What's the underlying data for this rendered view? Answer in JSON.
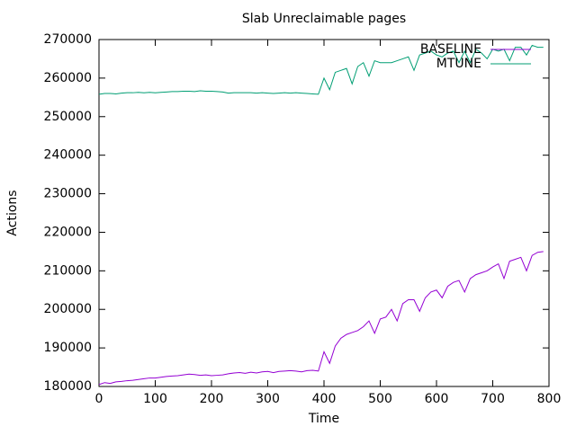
{
  "chart_data": {
    "type": "line",
    "title": "Slab Unreclaimable pages",
    "xlabel": "Time",
    "ylabel": "Actions",
    "x": [
      0,
      10,
      20,
      30,
      40,
      50,
      60,
      70,
      80,
      90,
      100,
      110,
      120,
      130,
      140,
      150,
      160,
      170,
      180,
      190,
      200,
      210,
      220,
      230,
      240,
      250,
      260,
      270,
      280,
      290,
      300,
      310,
      320,
      330,
      340,
      350,
      360,
      370,
      380,
      390,
      400,
      410,
      420,
      430,
      440,
      450,
      460,
      470,
      480,
      490,
      500,
      510,
      520,
      530,
      540,
      550,
      560,
      570,
      580,
      590,
      600,
      610,
      620,
      630,
      640,
      650,
      660,
      670,
      680,
      690,
      700,
      710,
      720,
      730,
      740,
      750,
      760,
      770,
      780,
      790
    ],
    "series": [
      {
        "name": "BASELINE",
        "color": "#9400d3",
        "values": [
          180500,
          181000,
          180800,
          181200,
          181300,
          181500,
          181600,
          181800,
          182000,
          182200,
          182200,
          182400,
          182600,
          182700,
          182800,
          183000,
          183200,
          183100,
          182900,
          183000,
          182800,
          182900,
          183000,
          183300,
          183500,
          183600,
          183400,
          183700,
          183500,
          183800,
          183900,
          183600,
          183900,
          184000,
          184100,
          184000,
          183800,
          184100,
          184200,
          184000,
          189000,
          186000,
          190500,
          192500,
          193500,
          194000,
          194500,
          195500,
          197000,
          193800,
          197500,
          198000,
          200000,
          197000,
          201500,
          202500,
          202500,
          199500,
          203000,
          204500,
          205000,
          203000,
          206000,
          207000,
          207500,
          204500,
          208000,
          209000,
          209500,
          210000,
          211000,
          211800,
          208000,
          212500,
          213000,
          213500,
          210000,
          214000,
          214800,
          215000
        ]
      },
      {
        "name": "MTUNE",
        "color": "#009e73",
        "values": [
          255800,
          256000,
          256000,
          255900,
          256100,
          256200,
          256200,
          256300,
          256200,
          256300,
          256200,
          256300,
          256400,
          256500,
          256500,
          256600,
          256600,
          256500,
          256700,
          256600,
          256600,
          256500,
          256400,
          256100,
          256200,
          256200,
          256200,
          256200,
          256100,
          256200,
          256100,
          256000,
          256100,
          256200,
          256100,
          256200,
          256100,
          256000,
          255900,
          255800,
          260000,
          257000,
          261500,
          262000,
          262500,
          258500,
          263000,
          264000,
          260500,
          264500,
          264000,
          264000,
          264000,
          264500,
          265000,
          265500,
          262000,
          266000,
          266500,
          267000,
          266000,
          265500,
          266500,
          267000,
          264000,
          267000,
          264000,
          267500,
          266500,
          265000,
          267500,
          267000,
          267500,
          264500,
          268000,
          268000,
          266000,
          268500,
          268000,
          268000
        ]
      }
    ],
    "xlim": [
      0,
      800
    ],
    "xticks": [
      0,
      100,
      200,
      300,
      400,
      500,
      600,
      700,
      800
    ],
    "ylim": [
      180000,
      270000
    ],
    "yticks": [
      180000,
      190000,
      200000,
      210000,
      220000,
      230000,
      240000,
      250000,
      260000,
      270000
    ],
    "grid": false,
    "legend": "top-right"
  }
}
